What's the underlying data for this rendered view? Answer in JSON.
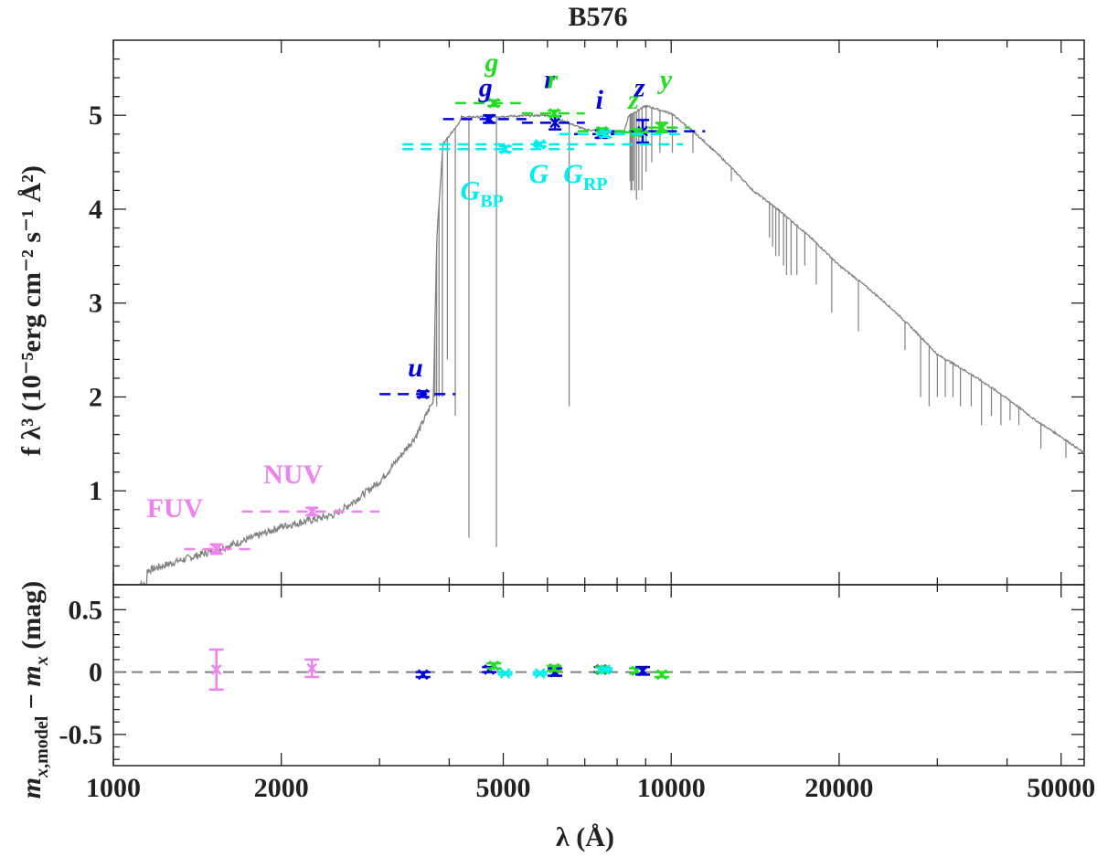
{
  "chart_data": [
    {
      "type": "scatter",
      "panel": "top",
      "title": "B576",
      "ylabel": "f λ³ (10⁻⁵erg cm⁻² s⁻¹ Å²)",
      "xscale": "log",
      "xlim": [
        1000,
        55000
      ],
      "ylim": [
        0.0,
        5.8
      ],
      "yticks": [
        1,
        2,
        3,
        4,
        5
      ],
      "model_spectrum_color": "#808080",
      "series": [
        {
          "name": "FUV",
          "color": "#ee82ee",
          "marker_style": "x",
          "points": [
            {
              "x": 1530,
              "y": 0.38,
              "xerr_lo": 1340,
              "xerr_hi": 1800,
              "yerr": 0.05
            }
          ]
        },
        {
          "name": "NUV",
          "color": "#ee82ee",
          "marker_style": "x",
          "points": [
            {
              "x": 2270,
              "y": 0.78,
              "xerr_lo": 1700,
              "xerr_hi": 3000,
              "yerr": 0.04
            }
          ]
        },
        {
          "name": "u",
          "color": "#0000dd",
          "marker_style": "x",
          "points": [
            {
              "x": 3590,
              "y": 2.03,
              "xerr_lo": 3000,
              "xerr_hi": 4100,
              "yerr": 0.03
            }
          ]
        },
        {
          "name": "g",
          "color": "#0000dd",
          "marker_style": "x",
          "points": [
            {
              "x": 4720,
              "y": 4.96,
              "xerr_lo": 3900,
              "xerr_hi": 5500,
              "yerr": 0.04
            }
          ]
        },
        {
          "name": "r",
          "color": "#0000dd",
          "marker_style": "x",
          "points": [
            {
              "x": 6190,
              "y": 4.92,
              "xerr_lo": 5400,
              "xerr_hi": 7000,
              "yerr": 0.07
            }
          ]
        },
        {
          "name": "i",
          "color": "#0000dd",
          "marker_style": "x",
          "points": [
            {
              "x": 7490,
              "y": 4.8,
              "xerr_lo": 6700,
              "xerr_hi": 8300,
              "yerr": 0.04
            }
          ]
        },
        {
          "name": "z",
          "color": "#0000dd",
          "marker_style": "x",
          "points": [
            {
              "x": 8890,
              "y": 4.83,
              "xerr_lo": 7800,
              "xerr_hi": 11500,
              "yerr": 0.12
            }
          ]
        },
        {
          "name": "g",
          "color": "#22dd22",
          "marker_style": "x",
          "points": [
            {
              "x": 4810,
              "y": 5.13,
              "xerr_lo": 4100,
              "xerr_hi": 5500,
              "yerr": 0.03
            }
          ]
        },
        {
          "name": "r",
          "color": "#22dd22",
          "marker_style": "x",
          "points": [
            {
              "x": 6170,
              "y": 5.02,
              "xerr_lo": 5400,
              "xerr_hi": 7000,
              "yerr": 0.03
            }
          ]
        },
        {
          "name": "i",
          "color": "#22dd22",
          "marker_style": "x",
          "points": [
            {
              "x": 7520,
              "y": 4.83,
              "xerr_lo": 6800,
              "xerr_hi": 8300,
              "yerr": 0.03
            }
          ]
        },
        {
          "name": "z",
          "color": "#22dd22",
          "marker_style": "x",
          "points": [
            {
              "x": 8660,
              "y": 4.82,
              "xerr_lo": 8100,
              "xerr_hi": 9300,
              "yerr": 0.03
            }
          ]
        },
        {
          "name": "y",
          "color": "#22dd22",
          "marker_style": "x",
          "points": [
            {
              "x": 9620,
              "y": 4.87,
              "xerr_lo": 9100,
              "xerr_hi": 10800,
              "yerr": 0.05
            }
          ]
        },
        {
          "name": "G_BP",
          "color": "#00eeee",
          "marker_style": "x",
          "points": [
            {
              "x": 5040,
              "y": 4.64,
              "xerr_lo": 3300,
              "xerr_hi": 6700,
              "yerr": 0.03
            }
          ]
        },
        {
          "name": "G",
          "color": "#00eeee",
          "marker_style": "x",
          "points": [
            {
              "x": 5820,
              "y": 4.69,
              "xerr_lo": 3300,
              "xerr_hi": 10500,
              "yerr": 0.02
            }
          ]
        },
        {
          "name": "G_RP",
          "color": "#00eeee",
          "marker_style": "x",
          "points": [
            {
              "x": 7620,
              "y": 4.8,
              "xerr_lo": 6300,
              "xerr_hi": 10500,
              "yerr": 0.03
            }
          ]
        }
      ],
      "annotations": [
        {
          "text": "FUV",
          "x": 1290,
          "y": 0.72,
          "color": "#ee82ee",
          "italic": false
        },
        {
          "text": "NUV",
          "x": 2100,
          "y": 1.08,
          "color": "#ee82ee",
          "italic": false
        },
        {
          "text": "u",
          "x": 3480,
          "y": 2.22,
          "color": "#0000dd",
          "italic": true
        },
        {
          "text": "g",
          "x": 4650,
          "y": 5.2,
          "color": "#0000dd",
          "italic": true
        },
        {
          "text": "g",
          "x": 4770,
          "y": 5.47,
          "color": "#22dd22",
          "italic": true
        },
        {
          "text": "r",
          "x": 6050,
          "y": 5.29,
          "color": "#0000dd",
          "italic": true
        },
        {
          "text": "r",
          "x": 6130,
          "y": 5.29,
          "color": "#22dd22",
          "italic": true
        },
        {
          "text": "i",
          "x": 7440,
          "y": 5.07,
          "color": "#0000dd",
          "italic": true
        },
        {
          "text": "z",
          "x": 8780,
          "y": 5.2,
          "color": "#0000dd",
          "italic": true
        },
        {
          "text": "z",
          "x": 8560,
          "y": 5.07,
          "color": "#22dd22",
          "italic": true
        },
        {
          "text": "y",
          "x": 9790,
          "y": 5.29,
          "color": "#22dd22",
          "italic": true
        },
        {
          "text": "G",
          "x": 4580,
          "y": 4.1,
          "color": "#00eeee",
          "italic": true,
          "sub": "BP"
        },
        {
          "text": "G",
          "x": 5790,
          "y": 4.28,
          "color": "#00eeee",
          "italic": true
        },
        {
          "text": "G",
          "x": 7020,
          "y": 4.28,
          "color": "#00eeee",
          "italic": true,
          "sub": "RP"
        }
      ]
    },
    {
      "type": "scatter",
      "panel": "bottom",
      "xlabel": "λ (Å)",
      "ylabel": "m_x,model − m_x (mag)",
      "xscale": "log",
      "xlim": [
        1000,
        55000
      ],
      "ylim": [
        -0.75,
        0.7
      ],
      "yticks": [
        0.5,
        0,
        -0.5
      ],
      "ytick_labels": [
        "0.5",
        "0",
        "-0.5"
      ],
      "xticks": [
        1000,
        2000,
        5000,
        10000,
        20000,
        50000
      ],
      "xtick_labels": [
        "1000",
        "2000",
        "5000",
        "10000",
        "20000",
        "50000"
      ],
      "zero_line": {
        "y": 0,
        "style": "dashed",
        "color": "#808080"
      },
      "residuals": [
        {
          "band": "FUV",
          "color": "#ee82ee",
          "x": 1530,
          "y": 0.02,
          "yerr": 0.16
        },
        {
          "band": "NUV",
          "color": "#ee82ee",
          "x": 2270,
          "y": 0.03,
          "yerr": 0.07
        },
        {
          "band": "u",
          "color": "#0000dd",
          "x": 3590,
          "y": -0.02,
          "yerr": 0.02
        },
        {
          "band": "g",
          "color": "#0000dd",
          "x": 4720,
          "y": 0.02,
          "yerr": 0.02
        },
        {
          "band": "g",
          "color": "#22dd22",
          "x": 4810,
          "y": 0.05,
          "yerr": 0.02
        },
        {
          "band": "G_BP",
          "color": "#00eeee",
          "x": 5040,
          "y": -0.01,
          "yerr": 0.01
        },
        {
          "band": "G",
          "color": "#00eeee",
          "x": 5820,
          "y": -0.01,
          "yerr": 0.01
        },
        {
          "band": "r",
          "color": "#0000dd",
          "x": 6190,
          "y": 0.0,
          "yerr": 0.03
        },
        {
          "band": "r",
          "color": "#22dd22",
          "x": 6170,
          "y": 0.03,
          "yerr": 0.02
        },
        {
          "band": "i",
          "color": "#0000dd",
          "x": 7490,
          "y": 0.02,
          "yerr": 0.02
        },
        {
          "band": "i",
          "color": "#22dd22",
          "x": 7520,
          "y": 0.02,
          "yerr": 0.02
        },
        {
          "band": "G_RP",
          "color": "#00eeee",
          "x": 7620,
          "y": 0.02,
          "yerr": 0.01
        },
        {
          "band": "z",
          "color": "#22dd22",
          "x": 8660,
          "y": 0.01,
          "yerr": 0.02
        },
        {
          "band": "z",
          "color": "#0000dd",
          "x": 8890,
          "y": 0.01,
          "yerr": 0.03
        },
        {
          "band": "y",
          "color": "#22dd22",
          "x": 9620,
          "y": -0.02,
          "yerr": 0.02
        }
      ]
    }
  ]
}
